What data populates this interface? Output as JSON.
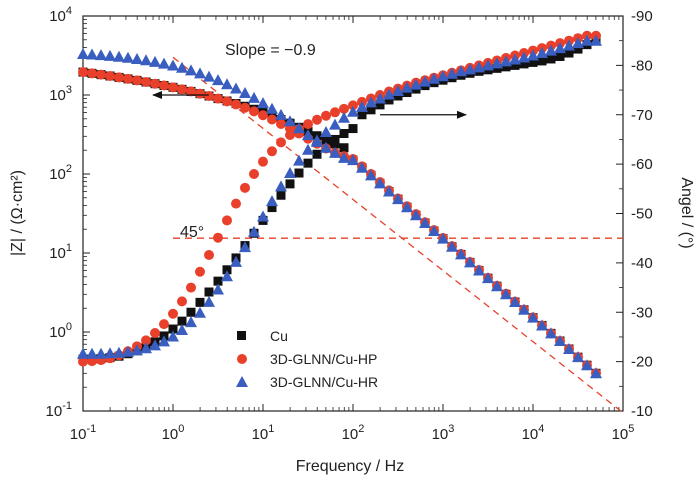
{
  "chart_data": {
    "type": "scatter",
    "title": "",
    "xlabel": "Frequency / Hz",
    "ylabel_left": "|Z| / (Ω·cm²)",
    "ylabel_right": "Angel / (°)",
    "x_scale": "log",
    "xlim": [
      0.1,
      100000
    ],
    "ylim_left": [
      0.1,
      10000
    ],
    "y_scale_left": "log",
    "ylim_right": [
      -10,
      -90
    ],
    "y_scale_right": "linear",
    "grid": false,
    "x_ticks": [
      {
        "value": 0.1,
        "base": "10",
        "exp": "-1"
      },
      {
        "value": 1,
        "base": "10",
        "exp": "0"
      },
      {
        "value": 10,
        "base": "10",
        "exp": "1"
      },
      {
        "value": 100,
        "base": "10",
        "exp": "2"
      },
      {
        "value": 1000,
        "base": "10",
        "exp": "3"
      },
      {
        "value": 10000,
        "base": "10",
        "exp": "4"
      },
      {
        "value": 100000,
        "base": "10",
        "exp": "5"
      }
    ],
    "y_left_ticks": [
      {
        "value": 0.1,
        "base": "10",
        "exp": "-1"
      },
      {
        "value": 1,
        "base": "10",
        "exp": "0"
      },
      {
        "value": 10,
        "base": "10",
        "exp": "1"
      },
      {
        "value": 100,
        "base": "10",
        "exp": "2"
      },
      {
        "value": 1000,
        "base": "10",
        "exp": "3"
      },
      {
        "value": 10000,
        "base": "10",
        "exp": "4"
      }
    ],
    "y_right_ticks": [
      -10,
      -20,
      -30,
      -40,
      -50,
      -60,
      -70,
      -80,
      -90
    ],
    "x": [
      0.1,
      0.1259,
      0.1585,
      0.1995,
      0.2512,
      0.3162,
      0.3981,
      0.5012,
      0.631,
      0.7943,
      1.0,
      1.259,
      1.585,
      1.995,
      2.512,
      3.162,
      3.981,
      5.012,
      6.31,
      7.943,
      10.0,
      12.59,
      15.85,
      19.95,
      25.12,
      31.62,
      39.81,
      50.12,
      63.1,
      79.43,
      100.0,
      125.9,
      158.5,
      199.5,
      251.2,
      316.2,
      398.1,
      501.2,
      631.0,
      794.3,
      1000.0,
      1259.0,
      1585.0,
      1995.0,
      2512.0,
      3162.0,
      3981.0,
      5012.0,
      6310.0,
      7943.0,
      10000.0,
      12590.0,
      15850.0,
      19950.0,
      25120.0,
      31620.0,
      39810.0,
      50120.0
    ],
    "series": [
      {
        "name": "Cu",
        "marker": "square",
        "color": "#111111",
        "impedance": [
          1950,
          1880,
          1810,
          1740,
          1670,
          1600,
          1530,
          1460,
          1390,
          1320,
          1250,
          1180,
          1110,
          1040,
          970,
          900,
          840,
          780,
          720,
          660,
          600,
          545,
          490,
          440,
          390,
          345,
          305,
          270,
          240,
          215,
          150,
          120,
          96,
          76,
          60,
          48,
          38,
          30,
          24,
          19,
          15.2,
          12.0,
          9.6,
          7.6,
          6.0,
          4.8,
          3.8,
          3.0,
          2.4,
          1.91,
          1.52,
          1.21,
          0.96,
          0.77,
          0.61,
          0.48,
          0.38,
          0.3
        ],
        "phase": [
          -20.5,
          -20.5,
          -20.6,
          -20.8,
          -21.1,
          -21.6,
          -22.2,
          -23.0,
          -24.0,
          -25.2,
          -26.6,
          -28.2,
          -30.0,
          -32.0,
          -34.1,
          -36.3,
          -38.6,
          -41.0,
          -43.5,
          -46.0,
          -48.6,
          -51.2,
          -53.7,
          -56.0,
          -58.2,
          -60.2,
          -62.0,
          -63.6,
          -65.0,
          -66.2,
          -67.2,
          -70.0,
          -71.0,
          -72.0,
          -73.0,
          -73.8,
          -74.5,
          -75.2,
          -75.9,
          -76.5,
          -77.0,
          -77.5,
          -78.0,
          -78.4,
          -78.8,
          -79.1,
          -79.4,
          -79.7,
          -80.0,
          -80.3,
          -80.6,
          -80.9,
          -81.3,
          -81.8,
          -82.5,
          -83.3,
          -84.2,
          -85.0
        ]
      },
      {
        "name": "3D-GLNN/Cu-HP",
        "marker": "circle",
        "color": "#e8402a",
        "impedance": [
          1950,
          1880,
          1810,
          1740,
          1670,
          1600,
          1530,
          1460,
          1390,
          1320,
          1250,
          1180,
          1110,
          1040,
          970,
          900,
          830,
          760,
          690,
          620,
          555,
          490,
          430,
          375,
          325,
          280,
          242,
          210,
          185,
          168,
          155,
          125,
          100,
          79,
          62,
          49,
          39,
          31,
          24.5,
          19.5,
          15.5,
          12.2,
          9.7,
          7.7,
          6.1,
          4.85,
          3.85,
          3.05,
          2.42,
          1.92,
          1.53,
          1.21,
          0.96,
          0.77,
          0.61,
          0.48,
          0.38,
          0.3
        ],
        "phase": [
          -20.0,
          -20.1,
          -20.3,
          -20.7,
          -21.3,
          -22.1,
          -23.1,
          -24.3,
          -25.8,
          -27.6,
          -29.7,
          -32.2,
          -35.0,
          -38.2,
          -41.6,
          -45.1,
          -48.6,
          -52.0,
          -55.2,
          -58.0,
          -60.5,
          -62.6,
          -64.4,
          -65.9,
          -67.1,
          -68.1,
          -69.0,
          -69.8,
          -70.5,
          -71.2,
          -71.9,
          -72.6,
          -73.3,
          -74.0,
          -74.7,
          -75.3,
          -75.9,
          -76.5,
          -77.0,
          -77.5,
          -78.0,
          -78.5,
          -79.0,
          -79.5,
          -80.0,
          -80.5,
          -81.0,
          -81.5,
          -82.0,
          -82.5,
          -83.0,
          -83.5,
          -84.0,
          -84.5,
          -85.0,
          -85.5,
          -86.0,
          -86.0
        ]
      },
      {
        "name": "3D-GLNN/Cu-HR",
        "marker": "triangle",
        "color": "#3a5ec0",
        "impedance": [
          3300,
          3260,
          3200,
          3130,
          3050,
          2960,
          2860,
          2750,
          2630,
          2500,
          2360,
          2210,
          2050,
          1880,
          1710,
          1540,
          1370,
          1210,
          1060,
          920,
          790,
          670,
          560,
          465,
          380,
          310,
          255,
          215,
          185,
          160,
          150,
          120,
          96,
          76,
          60,
          48,
          38,
          30,
          24,
          19,
          15.2,
          12.0,
          9.6,
          7.6,
          6.0,
          4.8,
          3.8,
          3.0,
          2.4,
          1.91,
          1.52,
          1.21,
          0.96,
          0.77,
          0.61,
          0.48,
          0.38,
          0.3
        ],
        "phase": [
          -21.6,
          -21.6,
          -21.6,
          -21.7,
          -21.8,
          -22.0,
          -22.3,
          -22.7,
          -23.3,
          -24.1,
          -25.1,
          -26.4,
          -28.0,
          -29.9,
          -32.1,
          -34.6,
          -37.3,
          -40.2,
          -43.2,
          -46.3,
          -49.4,
          -52.5,
          -55.5,
          -58.2,
          -60.7,
          -62.9,
          -64.8,
          -66.5,
          -68.0,
          -69.4,
          -70.6,
          -71.6,
          -72.5,
          -73.3,
          -74.1,
          -74.8,
          -75.5,
          -76.1,
          -76.7,
          -77.3,
          -77.8,
          -78.3,
          -78.8,
          -79.2,
          -79.6,
          -80.0,
          -80.4,
          -80.8,
          -81.2,
          -81.6,
          -82.0,
          -82.5,
          -83.0,
          -83.5,
          -84.0,
          -84.5,
          -85.0,
          -85.0
        ]
      }
    ],
    "reference_lines": [
      {
        "name": "slope-line",
        "axis": "left",
        "x": [
          1.0,
          100000
        ],
        "y": [
          3000,
          0.095
        ],
        "color": "#e8402a",
        "style": "dashed"
      },
      {
        "name": "45-degree-line",
        "axis": "right",
        "x": [
          1.0,
          100000
        ],
        "y": [
          -45,
          -45
        ],
        "color": "#e8402a",
        "style": "dashed"
      }
    ],
    "annotations": {
      "slope_text": "Slope = −0.9",
      "angle_text": "45°",
      "arrow_left": {
        "axis": "left",
        "x_from": 2.5,
        "x_to": 0.6,
        "y": 1000
      },
      "arrow_right": {
        "axis": "right",
        "x_from": 200,
        "x_to": 1800,
        "y": -70
      }
    },
    "legend_position": "bottom-left"
  }
}
